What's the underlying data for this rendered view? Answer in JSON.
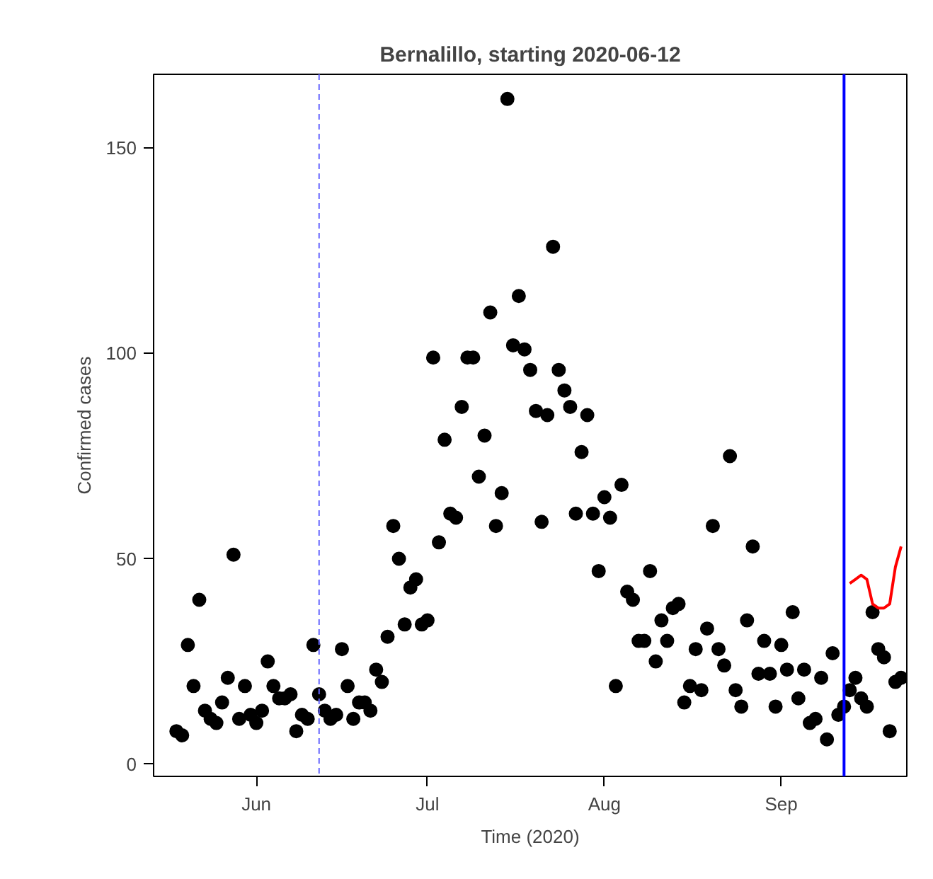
{
  "chart_data": {
    "type": "scatter",
    "title": "Bernalillo, starting 2020-06-12",
    "xlabel": "Time (2020)",
    "ylabel": "Confirmed cases",
    "x": [
      "2020-05-18",
      "2020-05-19",
      "2020-05-20",
      "2020-05-21",
      "2020-05-22",
      "2020-05-23",
      "2020-05-24",
      "2020-05-25",
      "2020-05-26",
      "2020-05-27",
      "2020-05-28",
      "2020-05-29",
      "2020-05-30",
      "2020-05-31",
      "2020-06-01",
      "2020-06-02",
      "2020-06-03",
      "2020-06-04",
      "2020-06-05",
      "2020-06-06",
      "2020-06-07",
      "2020-06-08",
      "2020-06-09",
      "2020-06-10",
      "2020-06-11",
      "2020-06-12",
      "2020-06-13",
      "2020-06-14",
      "2020-06-15",
      "2020-06-16",
      "2020-06-17",
      "2020-06-18",
      "2020-06-19",
      "2020-06-20",
      "2020-06-21",
      "2020-06-22",
      "2020-06-23",
      "2020-06-24",
      "2020-06-25",
      "2020-06-26",
      "2020-06-27",
      "2020-06-28",
      "2020-06-29",
      "2020-06-30",
      "2020-07-01",
      "2020-07-02",
      "2020-07-03",
      "2020-07-04",
      "2020-07-05",
      "2020-07-06",
      "2020-07-07",
      "2020-07-08",
      "2020-07-09",
      "2020-07-10",
      "2020-07-11",
      "2020-07-12",
      "2020-07-13",
      "2020-07-14",
      "2020-07-15",
      "2020-07-16",
      "2020-07-17",
      "2020-07-18",
      "2020-07-19",
      "2020-07-20",
      "2020-07-21",
      "2020-07-22",
      "2020-07-23",
      "2020-07-24",
      "2020-07-25",
      "2020-07-26",
      "2020-07-27",
      "2020-07-28",
      "2020-07-29",
      "2020-07-30",
      "2020-07-31",
      "2020-08-01",
      "2020-08-02",
      "2020-08-03",
      "2020-08-04",
      "2020-08-05",
      "2020-08-06",
      "2020-08-07",
      "2020-08-08",
      "2020-08-09",
      "2020-08-10",
      "2020-08-11",
      "2020-08-12",
      "2020-08-13",
      "2020-08-14",
      "2020-08-15",
      "2020-08-16",
      "2020-08-17",
      "2020-08-18",
      "2020-08-19",
      "2020-08-20",
      "2020-08-21",
      "2020-08-22",
      "2020-08-23",
      "2020-08-24",
      "2020-08-25",
      "2020-08-26",
      "2020-08-27",
      "2020-08-28",
      "2020-08-29",
      "2020-08-30",
      "2020-08-31",
      "2020-09-01",
      "2020-09-02",
      "2020-09-03",
      "2020-09-04",
      "2020-09-05",
      "2020-09-06",
      "2020-09-07",
      "2020-09-08",
      "2020-09-09",
      "2020-09-10",
      "2020-09-11",
      "2020-09-12",
      "2020-09-13",
      "2020-09-14",
      "2020-09-15",
      "2020-09-16",
      "2020-09-17",
      "2020-09-18",
      "2020-09-19",
      "2020-09-20",
      "2020-09-21",
      "2020-09-22"
    ],
    "series": [
      {
        "color": "#000000",
        "values": [
          8,
          7,
          29,
          19,
          40,
          13,
          11,
          10,
          15,
          21,
          51,
          11,
          19,
          12,
          10,
          13,
          25,
          19,
          16,
          16,
          17,
          8,
          12,
          11,
          29,
          17,
          13,
          11,
          12,
          28,
          19,
          11,
          15,
          15,
          13,
          23,
          20,
          31,
          58,
          50,
          34,
          43,
          45,
          34,
          35,
          99,
          54,
          79,
          61,
          60,
          87,
          99,
          99,
          70,
          80,
          110,
          58,
          66,
          162,
          102,
          114,
          101,
          96,
          86,
          59,
          85,
          126,
          96,
          91,
          87,
          61,
          76,
          85,
          61,
          47,
          65,
          60,
          19,
          68,
          42,
          40,
          30,
          30,
          47,
          25,
          35,
          30,
          38,
          39,
          15,
          19,
          28,
          18,
          33,
          58,
          28,
          24,
          75,
          18,
          14,
          35,
          53,
          22,
          30,
          22,
          14,
          29,
          23,
          37,
          16,
          23,
          10,
          11,
          21,
          6,
          27,
          12,
          14,
          18,
          21,
          16,
          14,
          37,
          28,
          26,
          8,
          20,
          21
        ]
      },
      {
        "type": "line",
        "color": "#ff0000",
        "marker": "none",
        "x": [
          "2020-09-13",
          "2020-09-14",
          "2020-09-15",
          "2020-09-16",
          "2020-09-17",
          "2020-09-18",
          "2020-09-19",
          "2020-09-20",
          "2020-09-21",
          "2020-09-22"
        ],
        "values": [
          44,
          45,
          46,
          45,
          39,
          38,
          38,
          39,
          48,
          53
        ]
      }
    ],
    "xlim": [
      "2020-05-14",
      "2020-09-23"
    ],
    "xticks": [
      {
        "value": "2020-06-01",
        "label": "Jun"
      },
      {
        "value": "2020-07-01",
        "label": "Jul"
      },
      {
        "value": "2020-08-01",
        "label": "Aug"
      },
      {
        "value": "2020-09-01",
        "label": "Sep"
      }
    ],
    "ylim": [
      -3,
      168
    ],
    "yticks": [
      0,
      50,
      100,
      150
    ],
    "ref_lines": [
      {
        "axis": "x",
        "value": "2020-06-12",
        "color": "#6666ff",
        "line_style": "dashed"
      },
      {
        "axis": "x",
        "value": "2020-09-12",
        "color": "#0000ff",
        "line_style": "solid"
      }
    ],
    "marker": "circle",
    "grid": false
  }
}
